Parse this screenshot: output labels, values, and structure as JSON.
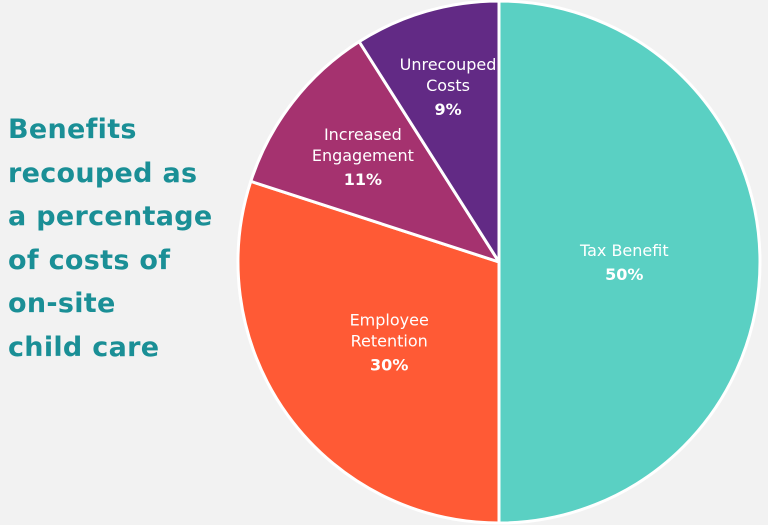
{
  "title_lines": [
    "Benefits",
    "recouped as",
    "a percentage",
    "of costs of",
    "on-site",
    "child care"
  ],
  "chart_data": {
    "type": "pie",
    "title": "Benefits recouped as a percentage of costs of on-site child care",
    "slices": [
      {
        "label": "Tax Benefit",
        "label_lines": [
          "Tax Benefit"
        ],
        "value": 50,
        "value_label": "50%",
        "color": "#5ad0c3"
      },
      {
        "label": "Employee Retention",
        "label_lines": [
          "Employee",
          "Retention"
        ],
        "value": 30,
        "value_label": "30%",
        "color": "#ff5a35"
      },
      {
        "label": "Increased Engagement",
        "label_lines": [
          "Increased",
          "Engagement"
        ],
        "value": 11,
        "value_label": "11%",
        "color": "#a5326f"
      },
      {
        "label": "Unrecouped Costs",
        "label_lines": [
          "Unrecouped",
          "Costs"
        ],
        "value": 9,
        "value_label": "9%",
        "color": "#622a85"
      }
    ]
  }
}
